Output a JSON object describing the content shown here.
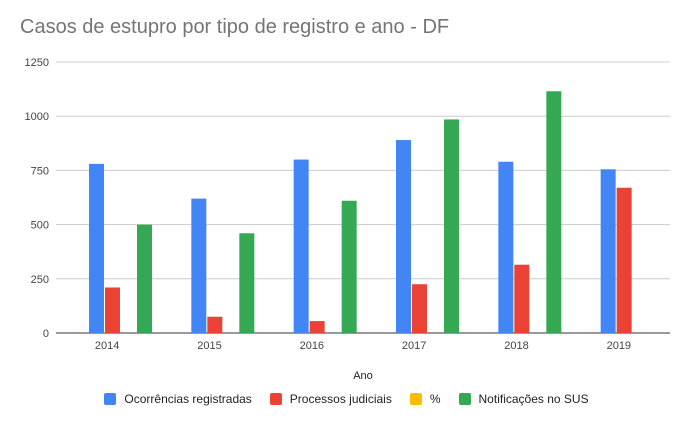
{
  "chart_data": {
    "type": "bar",
    "title": "Casos de estupro por tipo de registro e ano - DF",
    "xlabel": "Ano",
    "ylabel": "",
    "ylim": [
      0,
      1250
    ],
    "yticks": [
      "0",
      "250",
      "500",
      "750",
      "1000",
      "1250"
    ],
    "categories": [
      "2014",
      "2015",
      "2016",
      "2017",
      "2018",
      "2019"
    ],
    "grid": true,
    "legend_position": "bottom",
    "series": [
      {
        "name": "Ocorrências registradas",
        "color": "#4285F4",
        "values": [
          780,
          620,
          800,
          890,
          790,
          755
        ]
      },
      {
        "name": "Processos judiciais",
        "color": "#EA4335",
        "values": [
          210,
          75,
          55,
          225,
          315,
          670
        ]
      },
      {
        "name": "%",
        "color": "#FBBC04",
        "values": [
          null,
          null,
          null,
          null,
          null,
          null
        ]
      },
      {
        "name": "Notificações no SUS",
        "color": "#34A853",
        "values": [
          500,
          460,
          610,
          985,
          1115,
          null
        ]
      }
    ]
  }
}
